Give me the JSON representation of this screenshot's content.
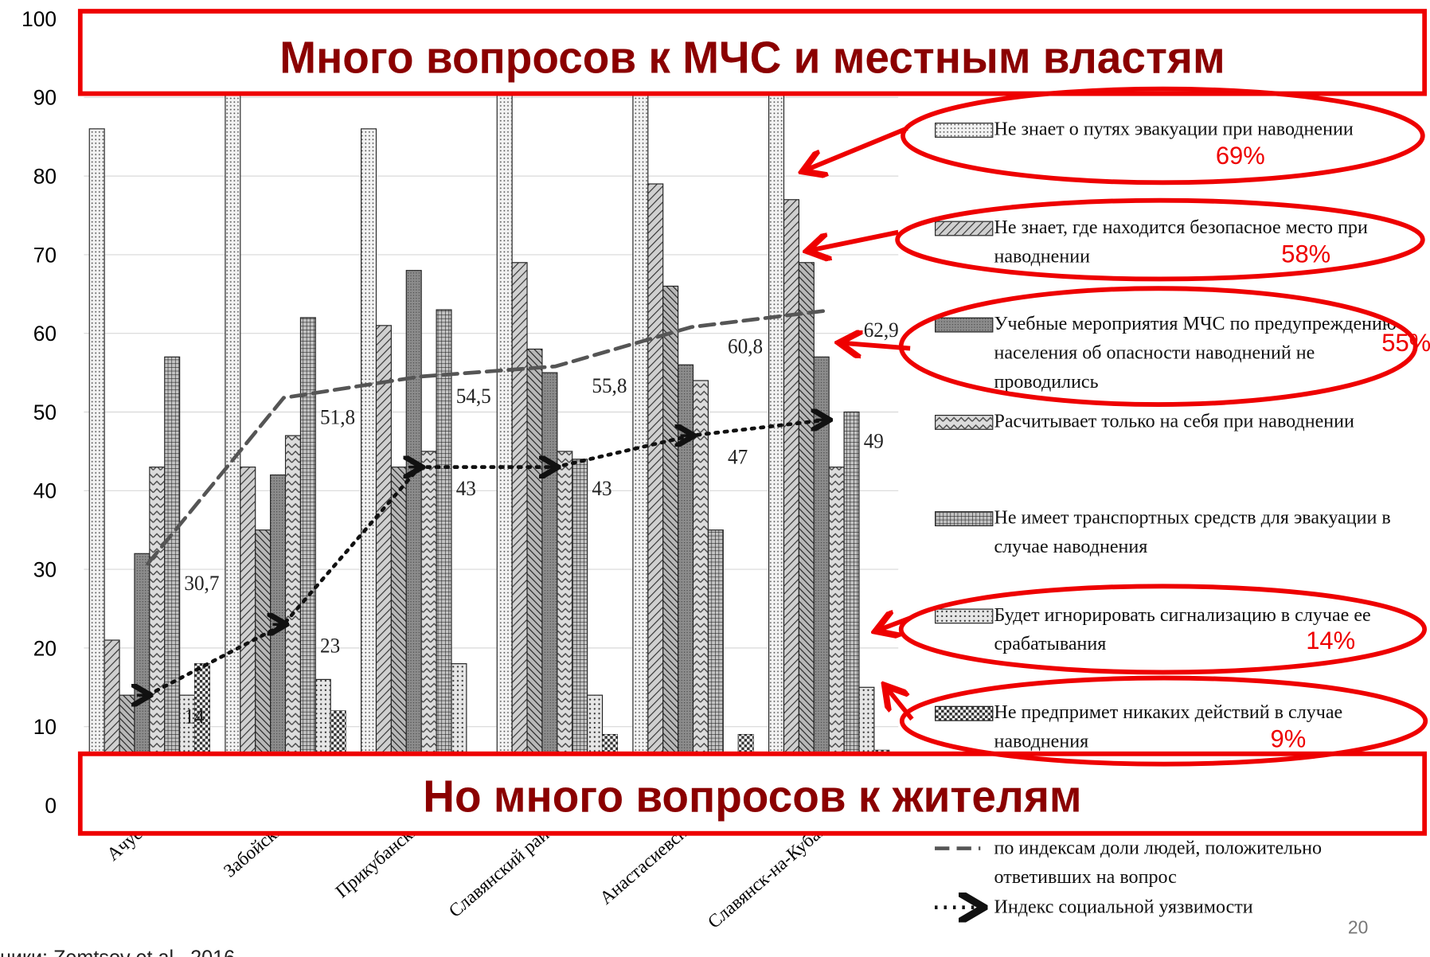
{
  "chart_data": {
    "type": "bar",
    "headline_top": "Много вопросов к МЧС и местным властям",
    "headline_bottom": "Но много вопросов к жителям",
    "source": "ники: Zemtsov et al., 2016",
    "page_number": "20",
    "categories": [
      "Ачуево",
      "Забойский",
      "Прикубанский",
      "Славянский район",
      "Анастасиевская",
      "Славянск-на-Кубани"
    ],
    "ylim": [
      0,
      100
    ],
    "yticks": [
      0,
      10,
      20,
      30,
      40,
      50,
      60,
      70,
      80,
      90,
      100
    ],
    "grid": true,
    "series": [
      {
        "name": "Не знает о путях эвакуации при наводнении",
        "color": "#f2f2f2",
        "values": [
          86,
          92,
          86,
          95,
          95,
          95
        ]
      },
      {
        "name": "Не знает, где находится безопасное место при наводнении",
        "color": "#d0d0d0",
        "values": [
          21,
          43,
          61,
          69,
          79,
          77
        ]
      },
      {
        "color": "#b8b8b8",
        "values": [
          14,
          35,
          43,
          58,
          66,
          69
        ]
      },
      {
        "name": "Учебные мероприятия МЧС по предупреждению населения об опасности наводнений не проводились",
        "color": "#8c8c8c",
        "values": [
          32,
          42,
          68,
          55,
          56,
          57
        ]
      },
      {
        "name": "Расчитывает только на себя при наводнении",
        "color": "#dcdcdc",
        "values": [
          43,
          47,
          45,
          45,
          54,
          43
        ]
      },
      {
        "name": "Не имеет транспортных средств для эвакуации в случае наводнения",
        "color": "#c4c4c4",
        "values": [
          57,
          62,
          63,
          44,
          35,
          50
        ]
      },
      {
        "name": "Будет игнорировать сигнализацию в случае ее срабатывания",
        "color": "#e6e6e6",
        "values": [
          14,
          16,
          18,
          14,
          5,
          15
        ]
      },
      {
        "name": "Не предпримет никаких действий в случае наводнения",
        "color": "#333333",
        "values": [
          18,
          12,
          5,
          9,
          9,
          7
        ]
      }
    ],
    "lines": [
      {
        "name": "по индексам доли людей, положительно ответивших на вопрос",
        "color": "#555555",
        "values": [
          30.7,
          51.8,
          54.5,
          55.8,
          60.8,
          62.9
        ],
        "value_labels": [
          "30,7",
          "51,8",
          "54,5",
          "55,8",
          "60,8",
          "62,9"
        ]
      },
      {
        "name": "Индекс социальной уязвимости",
        "color": "#111111",
        "values": [
          14,
          23,
          43,
          43,
          47,
          49
        ]
      }
    ],
    "annotations": [
      "69%",
      "58%",
      "55%",
      "14%",
      "9%"
    ]
  }
}
